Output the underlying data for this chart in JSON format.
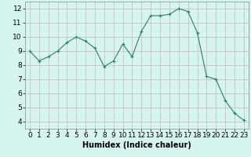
{
  "x": [
    0,
    1,
    2,
    3,
    4,
    5,
    6,
    7,
    8,
    9,
    10,
    11,
    12,
    13,
    14,
    15,
    16,
    17,
    18,
    19,
    20,
    21,
    22,
    23
  ],
  "y": [
    9.0,
    8.3,
    8.6,
    9.0,
    9.6,
    10.0,
    9.7,
    9.2,
    7.9,
    8.3,
    9.5,
    8.6,
    10.4,
    11.5,
    11.5,
    11.6,
    12.0,
    11.8,
    10.3,
    7.2,
    7.0,
    5.5,
    4.6,
    4.1
  ],
  "title": "",
  "xlabel": "Humidex (Indice chaleur)",
  "ylabel": "",
  "xlim": [
    -0.5,
    23.5
  ],
  "ylim": [
    3.5,
    12.5
  ],
  "yticks": [
    4,
    5,
    6,
    7,
    8,
    9,
    10,
    11,
    12
  ],
  "xticks": [
    0,
    1,
    2,
    3,
    4,
    5,
    6,
    7,
    8,
    9,
    10,
    11,
    12,
    13,
    14,
    15,
    16,
    17,
    18,
    19,
    20,
    21,
    22,
    23
  ],
  "line_color": "#2e7d6e",
  "marker": "+",
  "bg_color": "#d6f5f0",
  "grid_color": "#c8b8b8",
  "xlabel_fontsize": 7,
  "tick_fontsize": 6.5
}
